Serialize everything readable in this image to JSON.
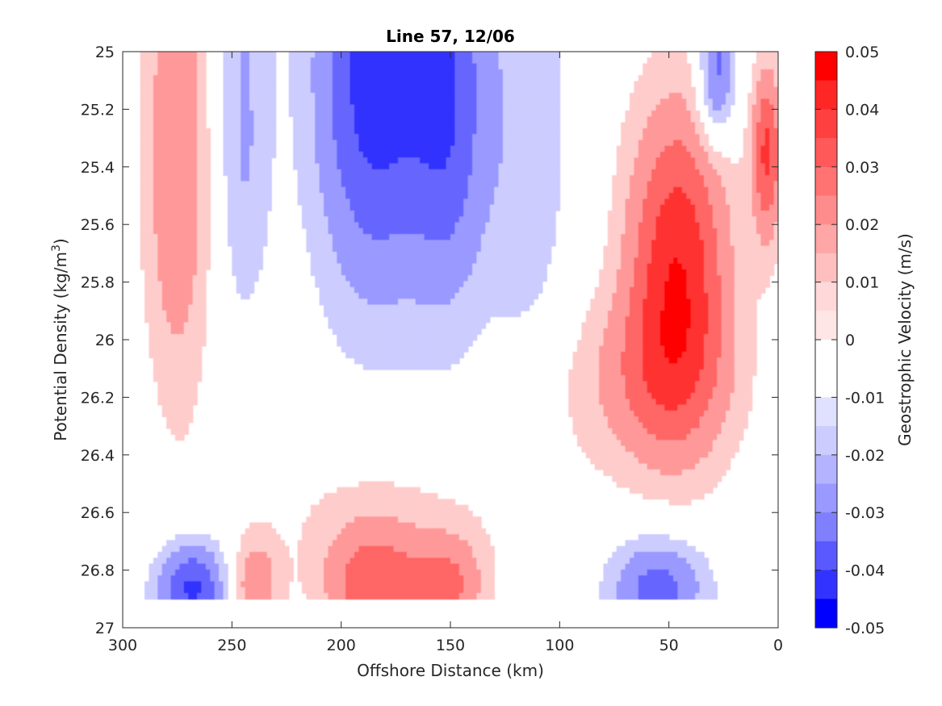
{
  "chart_data": {
    "type": "heatmap",
    "subtype": "filled-contour",
    "title": "Line 57, 12/06",
    "xlabel": "Offshore Distance (km)",
    "ylabel_main": "Potential Density (kg/m",
    "ylabel_sup": "3",
    "ylabel_close": ")",
    "x_reversed": true,
    "xlim": [
      0,
      300
    ],
    "ylim": [
      25,
      27
    ],
    "y_reversed": true,
    "x_ticks": [
      300,
      250,
      200,
      150,
      100,
      50,
      0
    ],
    "x_tick_labels": [
      "300",
      "250",
      "200",
      "150",
      "100",
      "50",
      "0"
    ],
    "y_ticks": [
      25,
      25.2,
      25.4,
      25.6,
      25.8,
      26,
      26.2,
      26.4,
      26.6,
      26.8,
      27
    ],
    "y_tick_labels": [
      "25",
      "25.2",
      "25.4",
      "25.6",
      "25.8",
      "26",
      "26.2",
      "26.4",
      "26.6",
      "26.8",
      "27"
    ],
    "grid": false,
    "colorbar": {
      "label": "Geostrophic Velocity (m/s)",
      "clim": [
        -0.05,
        0.05
      ],
      "ticks": [
        0.05,
        0.04,
        0.03,
        0.02,
        0.01,
        0,
        -0.01,
        -0.02,
        -0.03,
        -0.04,
        -0.05
      ],
      "tick_labels": [
        "0.05",
        "0.04",
        "0.03",
        "0.02",
        "0.01",
        "0",
        "-0.01",
        "-0.02",
        "-0.03",
        "-0.04",
        "-0.05"
      ],
      "colormap": "blue-white-red (diverging)",
      "color_negative_max": "#0000ff",
      "color_zero": "#ffffff",
      "color_positive_max": "#ff0000"
    },
    "features": [
      {
        "name": "positive core near 275 km",
        "x": 275,
        "y": 25.4,
        "value": 0.025
      },
      {
        "name": "positive core near 45 km",
        "x": 45,
        "y": 25.8,
        "value": 0.04
      },
      {
        "name": "negative core near 185 km",
        "x": 185,
        "y": 25.1,
        "value": -0.04
      },
      {
        "name": "negative lobe near 245 km",
        "x": 245,
        "y": 25.3,
        "value": -0.015
      },
      {
        "name": "positive bottom lobe near 185 km",
        "x": 185,
        "y": 26.85,
        "value": 0.03
      },
      {
        "name": "positive bottom lobe near 145 km",
        "x": 145,
        "y": 26.85,
        "value": 0.025
      },
      {
        "name": "negative bottom lobe near 270 km",
        "x": 270,
        "y": 26.85,
        "value": -0.035
      },
      {
        "name": "negative bottom lobe near 55 km",
        "x": 55,
        "y": 26.85,
        "value": -0.03
      },
      {
        "name": "positive patch near 5 km",
        "x": 5,
        "y": 25.4,
        "value": 0.035
      }
    ]
  }
}
